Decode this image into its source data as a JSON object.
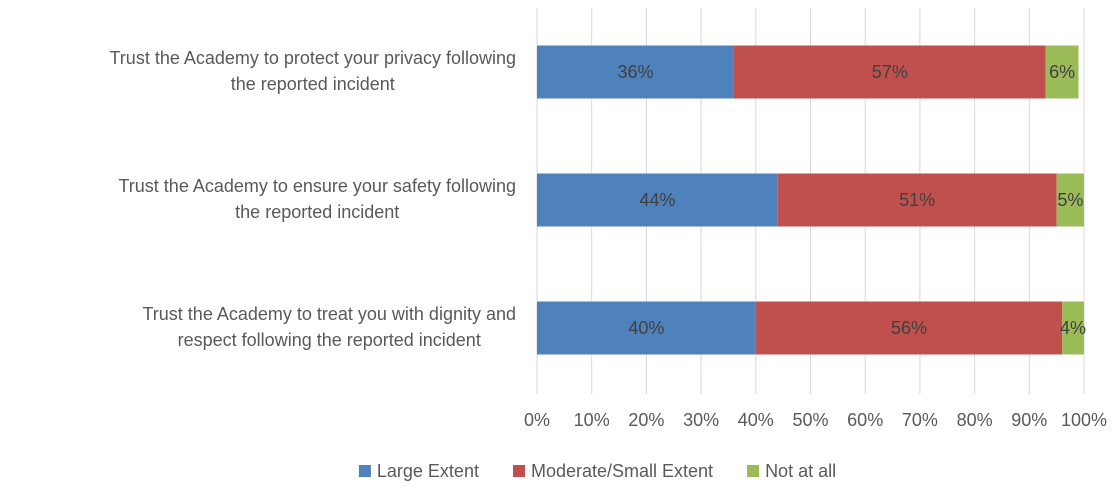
{
  "chart_data": {
    "type": "bar",
    "orientation": "horizontal",
    "stacked": true,
    "categories": [
      [
        "Trust the Academy to protect your privacy following",
        "the reported incident"
      ],
      [
        "Trust the Academy to ensure your safety following",
        "the reported incident"
      ],
      [
        "Trust the Academy to treat you with dignity and",
        "respect following the reported incident"
      ]
    ],
    "series": [
      {
        "name": "Large Extent",
        "color": "#4f81bd",
        "values": [
          36,
          44,
          40
        ],
        "labels": [
          "36%",
          "44%",
          "40%"
        ]
      },
      {
        "name": "Moderate/Small Extent",
        "color": "#c0504d",
        "values": [
          57,
          51,
          56
        ],
        "labels": [
          "57%",
          "51%",
          "56%"
        ]
      },
      {
        "name": "Not at all",
        "color": "#9bbb59",
        "values": [
          6,
          5,
          4
        ],
        "labels": [
          "6%",
          "5%",
          "4%"
        ]
      }
    ],
    "xlim": [
      0,
      100
    ],
    "xticks": [
      "0%",
      "10%",
      "20%",
      "30%",
      "40%",
      "50%",
      "60%",
      "70%",
      "80%",
      "90%",
      "100%"
    ],
    "grid": true,
    "legend_position": "bottom"
  }
}
